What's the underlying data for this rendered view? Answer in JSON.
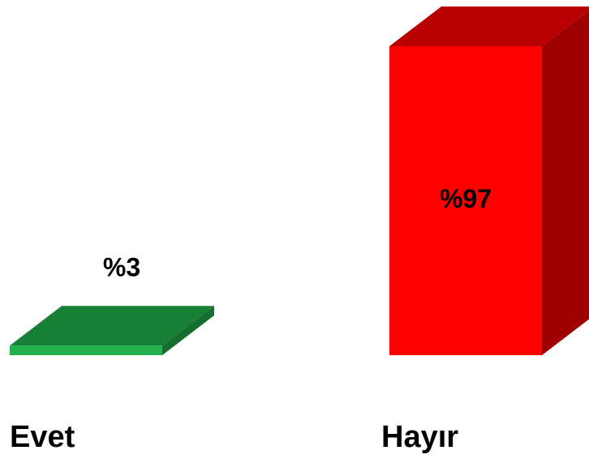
{
  "chart_data": {
    "type": "bar3d",
    "categories": [
      "Evet",
      "Hayır"
    ],
    "values": [
      3,
      97
    ],
    "value_labels": [
      "%3",
      "%97"
    ],
    "colors": [
      "#22b14c",
      "#ff0000"
    ]
  }
}
